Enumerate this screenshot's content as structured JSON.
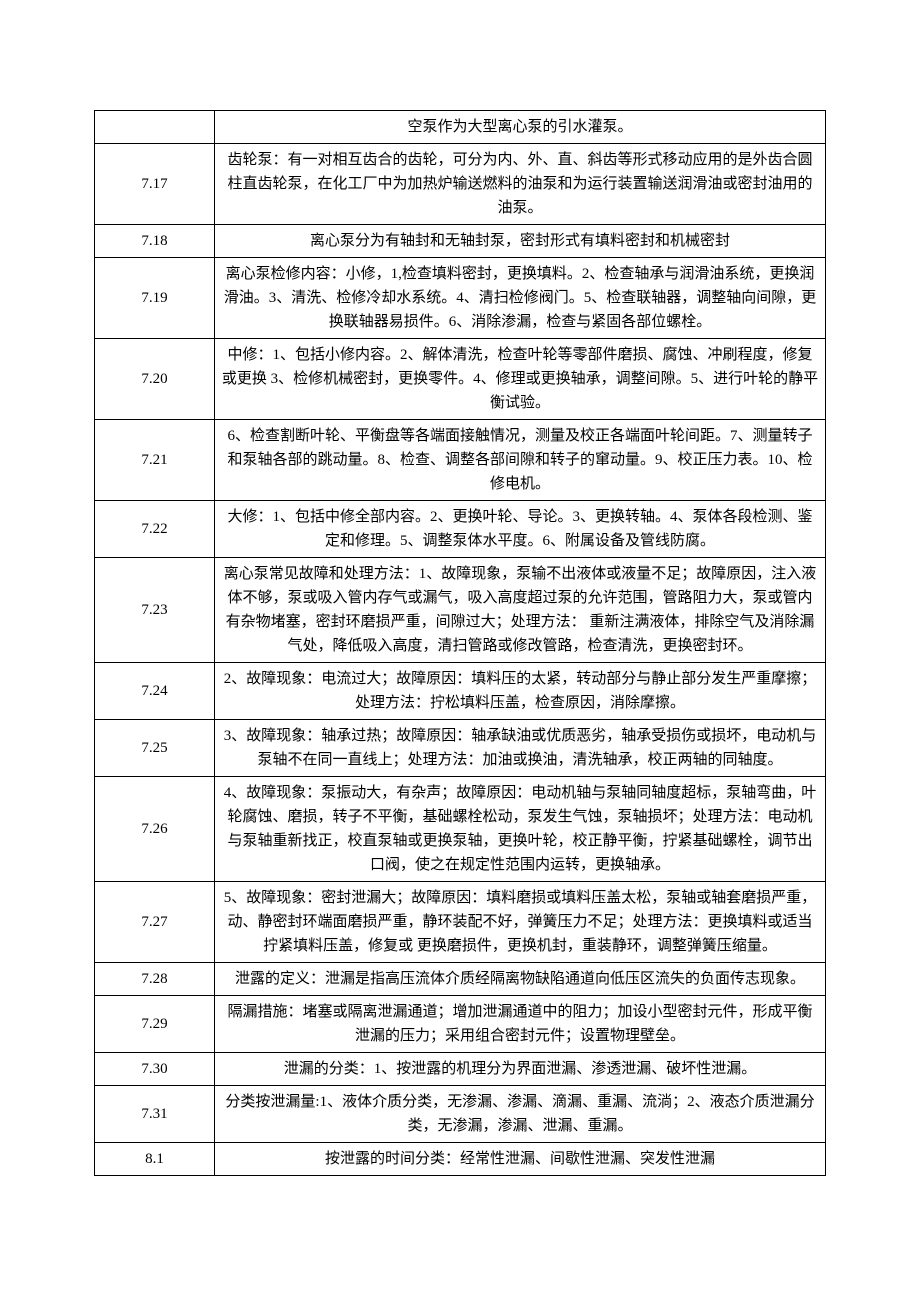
{
  "table": {
    "colWidths": [
      "120px",
      "auto"
    ],
    "rows": [
      {
        "id": "",
        "content": "空泵作为大型离心泵的引水灌泵。"
      },
      {
        "id": "7.17",
        "content": "齿轮泵：有一对相互齿合的齿轮，可分为内、外、直、斜齿等形式移动应用的是外齿合圆柱直齿轮泵，在化工厂中为加热炉输送燃料的油泵和为运行装置输送润滑油或密封油用的油泵。"
      },
      {
        "id": "7.18",
        "content": "离心泵分为有轴封和无轴封泵，密封形式有填料密封和机械密封"
      },
      {
        "id": "7.19",
        "content": "离心泵检修内容：小修，1,检查填料密封，更换填料。2、检查轴承与润滑油系统，更换润滑油。3、清洗、检修冷却水系统。4、清扫检修阀门。5、检查联轴器，调整轴向间隙，更换联轴器易损件。6、消除渗漏，检查与紧固各部位螺栓。"
      },
      {
        "id": "7.20",
        "content": "中修：1、包括小修内容。2、解体清洗，检查叶轮等零部件磨损、腐蚀、冲刷程度，修复或更换 3、检修机械密封，更换零件。4、修理或更换轴承，调整间隙。5、进行叶轮的静平衡试验。"
      },
      {
        "id": "7.21",
        "content": "6、检查割断叶轮、平衡盘等各端面接触情况，测量及校正各端面叶轮间距。7、测量转子和泵轴各部的跳动量。8、检查、调整各部间隙和转子的窜动量。9、校正压力表。10、检修电机。"
      },
      {
        "id": "7.22",
        "content": "大修：1、包括中修全部内容。2、更换叶轮、导论。3、更换转轴。4、泵体各段检测、鉴定和修理。5、调整泵体水平度。6、附属设备及管线防腐。"
      },
      {
        "id": "7.23",
        "content": "离心泵常见故障和处理方法：1、故障现象，泵输不出液体或液量不足；故障原因，注入液体不够，泵或吸入管内存气或漏气，吸入高度超过泵的允许范围，管路阻力大，泵或管内有杂物堵塞，密封环磨损严重，间隙过大；处理方法：  重新注满液体，排除空气及消除漏气处，降低吸入高度，清扫管路或修改管路，检查清洗，更换密封环。"
      },
      {
        "id": "7.24",
        "content": "2、故障现象：电流过大；故障原因：填料压的太紧，转动部分与静止部分发生严重摩擦；处理方法：拧松填料压盖，检查原因，消除摩擦。"
      },
      {
        "id": "7.25",
        "content": "3、故障现象：轴承过热；故障原因：轴承缺油或优质恶劣，轴承受损伤或损坏，电动机与泵轴不在同一直线上；处理方法：加油或换油，清洗轴承，校正两轴的同轴度。"
      },
      {
        "id": "7.26",
        "content": "4、故障现象：泵振动大，有杂声；故障原因：电动机轴与泵轴同轴度超标，泵轴弯曲，叶轮腐蚀、磨损，转子不平衡，基础螺栓松动，泵发生气蚀，泵轴损坏；处理方法：电动机与泵轴重新找正，校直泵轴或更换泵轴，更换叶轮，校正静平衡，拧紧基础螺栓，调节出口阀，使之在规定性范围内运转，更换轴承。"
      },
      {
        "id": "7.27",
        "content": "5、故障现象：密封泄漏大；故障原因：填料磨损或填料压盖太松，泵轴或轴套磨损严重，动、静密封环端面磨损严重，静环装配不好，弹簧压力不足；处理方法：更换填料或适当拧紧填料压盖，修复或  更换磨损件，更换机封，重装静环，调整弹簧压缩量。"
      },
      {
        "id": "7.28",
        "content": "泄露的定义：泄漏是指高压流体介质经隔离物缺陷通道向低压区流失的负面传志现象。"
      },
      {
        "id": "7.29",
        "content": "隔漏措施：堵塞或隔离泄漏通道；增加泄漏通道中的阻力；加设小型密封元件，形成平衡泄漏的压力；采用组合密封元件；设置物理壁垒。"
      },
      {
        "id": "7.30",
        "content": "泄漏的分类：1、按泄露的机理分为界面泄漏、渗透泄漏、破坏性泄漏。"
      },
      {
        "id": "7.31",
        "content": "分类按泄漏量:1、液体介质分类，无渗漏、渗漏、滴漏、重漏、流淌；2、液态介质泄漏分类，无渗漏，渗漏、泄漏、重漏。"
      },
      {
        "id": "8.1",
        "content": "按泄露的时间分类：经常性泄漏、间歇性泄漏、突发性泄漏"
      }
    ]
  }
}
